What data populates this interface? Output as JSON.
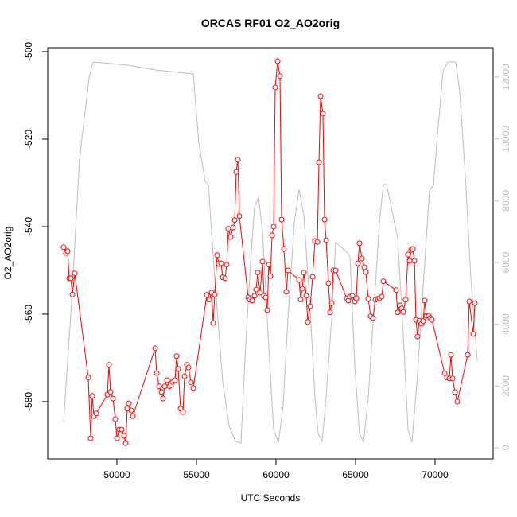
{
  "chart_data": {
    "type": "line",
    "title": "ORCAS RF01 O2_AO2orig",
    "x_label": "UTC Seconds",
    "y_label": "O2_AO2orig",
    "xlim": [
      45650,
      73650
    ],
    "xticks": [
      50000,
      55000,
      60000,
      65000,
      70000
    ],
    "ylim": [
      -593.1,
      -499.1
    ],
    "yticks": [
      -580,
      -560,
      -540,
      -520,
      -500
    ],
    "y2lim": [
      -360,
      12953
    ],
    "y2ticks": [
      0,
      2000,
      4000,
      6000,
      8000,
      10000,
      12000
    ],
    "y2_color": "#bebebe",
    "series": [
      {
        "color": "#ff0000",
        "markers": true,
        "x": [
          46650,
          46800,
          46900,
          47000,
          47100,
          47200,
          47350,
          48200,
          48350,
          48450,
          48550,
          48700,
          49400,
          49500,
          49600,
          49750,
          49900,
          50000,
          50150,
          50300,
          50450,
          50550,
          50650,
          50750,
          50900,
          51000,
          52400,
          52500,
          52650,
          52800,
          52900,
          53000,
          53150,
          53300,
          53400,
          53500,
          53650,
          53750,
          53850,
          54000,
          54150,
          54250,
          54400,
          54500,
          54650,
          54800,
          55650,
          55800,
          55950,
          56050,
          56150,
          56300,
          56400,
          56550,
          56650,
          56800,
          56900,
          57000,
          57150,
          57300,
          57400,
          57500,
          57600,
          57700,
          58250,
          58350,
          58500,
          58650,
          58750,
          58850,
          59000,
          59150,
          59250,
          59350,
          59450,
          59550,
          59650,
          59750,
          59850,
          59950,
          60100,
          60250,
          60350,
          60500,
          60650,
          60750,
          61450,
          61550,
          61650,
          61750,
          61900,
          62000,
          62150,
          62300,
          62450,
          62600,
          62700,
          62800,
          62950,
          63050,
          63150,
          63300,
          63400,
          63500,
          63600,
          63750,
          64450,
          64550,
          64650,
          64800,
          64950,
          65050,
          65150,
          65250,
          65400,
          65550,
          65650,
          65800,
          65950,
          66100,
          66250,
          66400,
          66500,
          66650,
          66750,
          67550,
          67650,
          67800,
          67900,
          68000,
          68150,
          68300,
          68400,
          68500,
          68600,
          68700,
          68800,
          68900,
          69000,
          69150,
          69250,
          69350,
          69450,
          69600,
          69700,
          69800,
          70600,
          70750,
          70900,
          71000,
          71100,
          71250,
          71400,
          72050,
          72150,
          72400,
          72500
        ],
        "values": [
          -544.7,
          -546.0,
          -545.6,
          -551.8,
          -551.8,
          -555.5,
          -550.7,
          -574.5,
          -588.4,
          -578.7,
          -583.3,
          -582.7,
          -578.4,
          -571.6,
          -577.8,
          -579.3,
          -584.0,
          -588.4,
          -586.4,
          -586.4,
          -587.8,
          -589.5,
          -581.6,
          -580.4,
          -582.0,
          -583.3,
          -567.8,
          -573.5,
          -576.5,
          -577.8,
          -579.3,
          -576.5,
          -575.1,
          -576.5,
          -576.2,
          -575.5,
          -575.1,
          -569.6,
          -572.5,
          -581.6,
          -582.4,
          -574.2,
          -571.6,
          -572.2,
          -575.6,
          -576.9,
          -555.6,
          -556.7,
          -555.1,
          -562.0,
          -555.5,
          -546.5,
          -548.5,
          -548.4,
          -551.6,
          -551.8,
          -548.7,
          -540.5,
          -542.4,
          -540.2,
          -538.5,
          -527.5,
          -524.7,
          -537.6,
          -556.2,
          -556.7,
          -556.9,
          -555.8,
          -554.4,
          -550.5,
          -555.1,
          -548.0,
          -555.8,
          -556.2,
          -559.1,
          -548.7,
          -551.3,
          -542.0,
          -540.0,
          -508.2,
          -502.2,
          -505.6,
          -538.4,
          -545.1,
          -554.9,
          -550.0,
          -552.2,
          -556.7,
          -554.2,
          -550.5,
          -555.8,
          -561.8,
          -558.2,
          -551.5,
          -543.3,
          -543.5,
          -525.3,
          -510.2,
          -514.2,
          -538.4,
          -543.1,
          -552.9,
          -559.6,
          -557.5,
          -550.0,
          -550.0,
          -556.4,
          -556.9,
          -556.0,
          -555.8,
          -557.1,
          -556.4,
          -548.4,
          -543.8,
          -547.3,
          -549.3,
          -550.4,
          -556.5,
          -560.5,
          -560.9,
          -556.7,
          -556.5,
          -556.4,
          -556.0,
          -552.5,
          -554.5,
          -559.6,
          -558.0,
          -558.7,
          -559.5,
          -556.7,
          -546.4,
          -547.8,
          -545.3,
          -545.1,
          -547.8,
          -561.3,
          -565.1,
          -561.5,
          -562.2,
          -561.6,
          -556.9,
          -560.4,
          -560.4,
          -560.9,
          -561.3,
          -573.5,
          -574.5,
          -574.7,
          -569.3,
          -574.7,
          -577.8,
          -580.0,
          -569.3,
          -557.1,
          -564.5,
          -557.5
        ]
      },
      {
        "color": "#bebebe",
        "axis": "y2",
        "markers": false,
        "x": [
          46650,
          47150,
          47650,
          48250,
          48500,
          49650,
          50650,
          52400,
          54800,
          55150,
          55550,
          55750,
          56150,
          56650,
          57050,
          57450,
          57800,
          58050,
          58400,
          58650,
          58900,
          59150,
          59500,
          59850,
          60150,
          60450,
          60750,
          61150,
          61450,
          61750,
          62150,
          62450,
          62650,
          62900,
          63150,
          63500,
          63750,
          64050,
          64400,
          64650,
          64950,
          65250,
          65500,
          65800,
          66150,
          66500,
          66750,
          66950,
          67250,
          67650,
          68000,
          68300,
          68550,
          68900,
          69250,
          69650,
          69900,
          70150,
          70500,
          70800,
          71300,
          71550,
          71900,
          72250,
          72650
        ],
        "values": [
          850,
          4712,
          9347,
          11974,
          12489,
          12437,
          12386,
          12231,
          12103,
          9862,
          8626,
          8523,
          5485,
          2137,
          721,
          206,
          155,
          2910,
          6000,
          7802,
          8111,
          7030,
          3682,
          592,
          155,
          1365,
          4197,
          7287,
          8369,
          7545,
          4455,
          1622,
          464,
          206,
          1622,
          4197,
          6644,
          6515,
          6360,
          6206,
          2652,
          464,
          180,
          1622,
          4455,
          7287,
          8523,
          8523,
          7802,
          6772,
          3682,
          592,
          180,
          2395,
          5227,
          8317,
          8523,
          10120,
          12180,
          12489,
          12489,
          11536,
          8832,
          5485,
          2832
        ]
      }
    ]
  }
}
